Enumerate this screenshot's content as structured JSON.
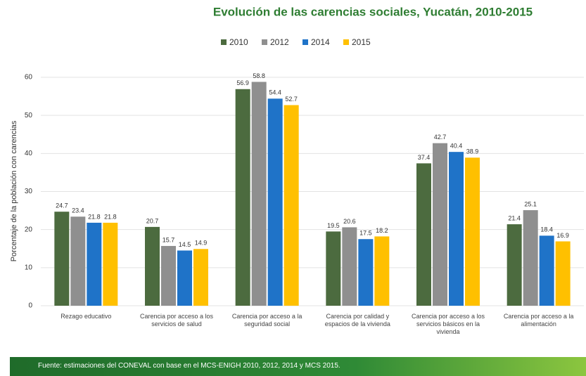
{
  "chart_data": {
    "type": "bar",
    "title": "Evolución de las carencias sociales, Yucatán, 2010-2015",
    "y_label": "Porcentaje de la población con carencias",
    "categories": [
      "Rezago educativo",
      "Carencia por acceso a los servicios de salud",
      "Carencia por acceso a la seguridad social",
      "Carencia por calidad y espacios de la vivienda",
      "Carencia por acceso a los servicios básicos en la vivienda",
      "Carencia por acceso a la alimentación"
    ],
    "series": [
      {
        "name": "2010",
        "color": "#4c6b3f",
        "values": [
          24.7,
          20.7,
          56.9,
          19.5,
          37.4,
          21.4
        ]
      },
      {
        "name": "2012",
        "color": "#8f8f8f",
        "values": [
          23.4,
          15.7,
          58.8,
          20.6,
          42.7,
          25.1
        ]
      },
      {
        "name": "2014",
        "color": "#1f73c8",
        "values": [
          21.8,
          14.5,
          54.4,
          17.5,
          40.4,
          18.4
        ]
      },
      {
        "name": "2015",
        "color": "#ffc000",
        "values": [
          21.8,
          14.9,
          52.7,
          18.2,
          38.9,
          16.9
        ]
      }
    ],
    "ylim": [
      0,
      60
    ],
    "yticks": [
      0,
      10,
      20,
      30,
      40,
      50,
      60
    ],
    "grid": true,
    "legend": "top",
    "source": "Fuente: estimaciones del CONEVAL con base en el MCS-ENIGH 2010, 2012, 2014 y MCS 2015."
  }
}
